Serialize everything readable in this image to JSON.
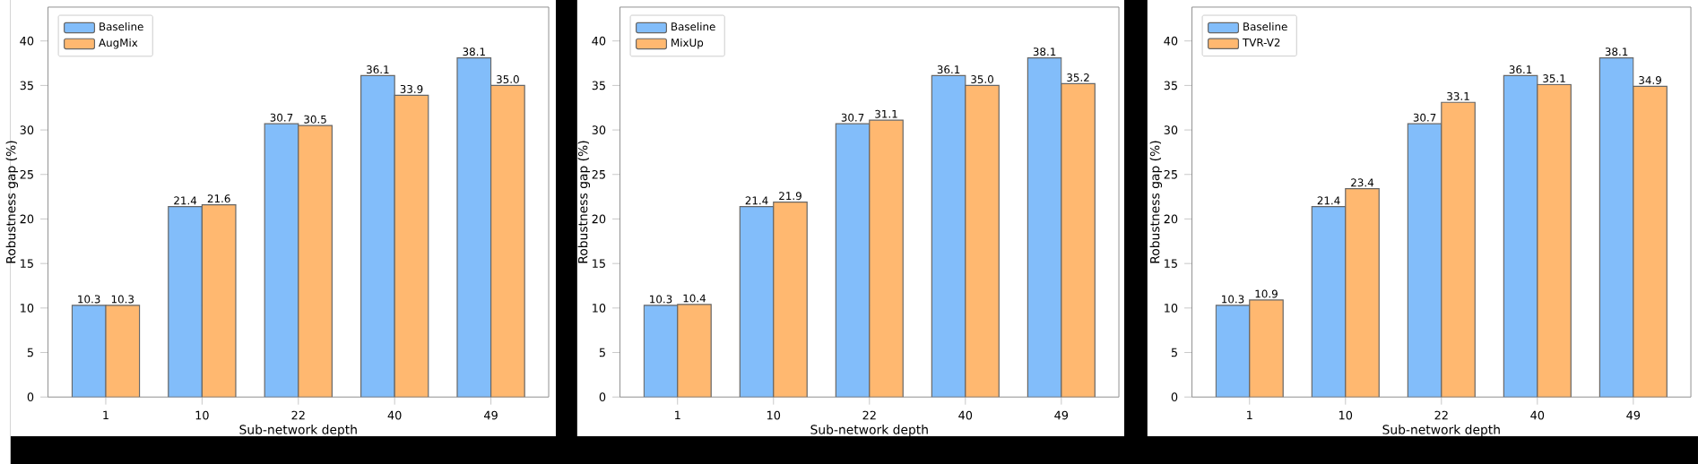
{
  "chart_data": [
    {
      "type": "bar",
      "xlabel": "Sub-network depth",
      "ylabel": "Robustness gap (%)",
      "categories": [
        "1",
        "10",
        "22",
        "40",
        "49"
      ],
      "series": [
        {
          "name": "Baseline",
          "color": "#82bdfa",
          "values": [
            10.3,
            21.4,
            30.7,
            36.1,
            38.1
          ],
          "value_labels": [
            "10.3",
            "21.4",
            "30.7",
            "36.1",
            "38.1"
          ]
        },
        {
          "name": "AugMix",
          "color": "#ffb870",
          "values": [
            10.3,
            21.6,
            30.5,
            33.9,
            35.0
          ],
          "value_labels": [
            "10.3",
            "21.6",
            "30.5",
            "33.9",
            "35.0"
          ]
        }
      ],
      "ylim": [
        0,
        43.8
      ],
      "yticks": [
        0,
        5,
        10,
        15,
        20,
        25,
        30,
        35,
        40
      ],
      "legend": "top left"
    },
    {
      "type": "bar",
      "xlabel": "Sub-network depth",
      "ylabel": "Robustness gap (%)",
      "categories": [
        "1",
        "10",
        "22",
        "40",
        "49"
      ],
      "series": [
        {
          "name": "Baseline",
          "color": "#82bdfa",
          "values": [
            10.3,
            21.4,
            30.7,
            36.1,
            38.1
          ],
          "value_labels": [
            "10.3",
            "21.4",
            "30.7",
            "36.1",
            "38.1"
          ]
        },
        {
          "name": "MixUp",
          "color": "#ffb870",
          "values": [
            10.4,
            21.9,
            31.1,
            35.0,
            35.2
          ],
          "value_labels": [
            "10.4",
            "21.9",
            "31.1",
            "35.0",
            "35.2"
          ]
        }
      ],
      "ylim": [
        0,
        43.8
      ],
      "yticks": [
        0,
        5,
        10,
        15,
        20,
        25,
        30,
        35,
        40
      ],
      "legend": "top left"
    },
    {
      "type": "bar",
      "xlabel": "Sub-network depth",
      "ylabel": "Robustness gap (%)",
      "categories": [
        "1",
        "10",
        "22",
        "40",
        "49"
      ],
      "series": [
        {
          "name": "Baseline",
          "color": "#82bdfa",
          "values": [
            10.3,
            21.4,
            30.7,
            36.1,
            38.1
          ],
          "value_labels": [
            "10.3",
            "21.4",
            "30.7",
            "36.1",
            "38.1"
          ]
        },
        {
          "name": "TVR-V2",
          "color": "#ffb870",
          "values": [
            10.9,
            23.4,
            33.1,
            35.1,
            34.9
          ],
          "value_labels": [
            "10.9",
            "23.4",
            "33.1",
            "35.1",
            "34.9"
          ]
        }
      ],
      "ylim": [
        0,
        43.8
      ],
      "yticks": [
        0,
        5,
        10,
        15,
        20,
        25,
        30,
        35,
        40
      ],
      "legend": "top left"
    }
  ]
}
